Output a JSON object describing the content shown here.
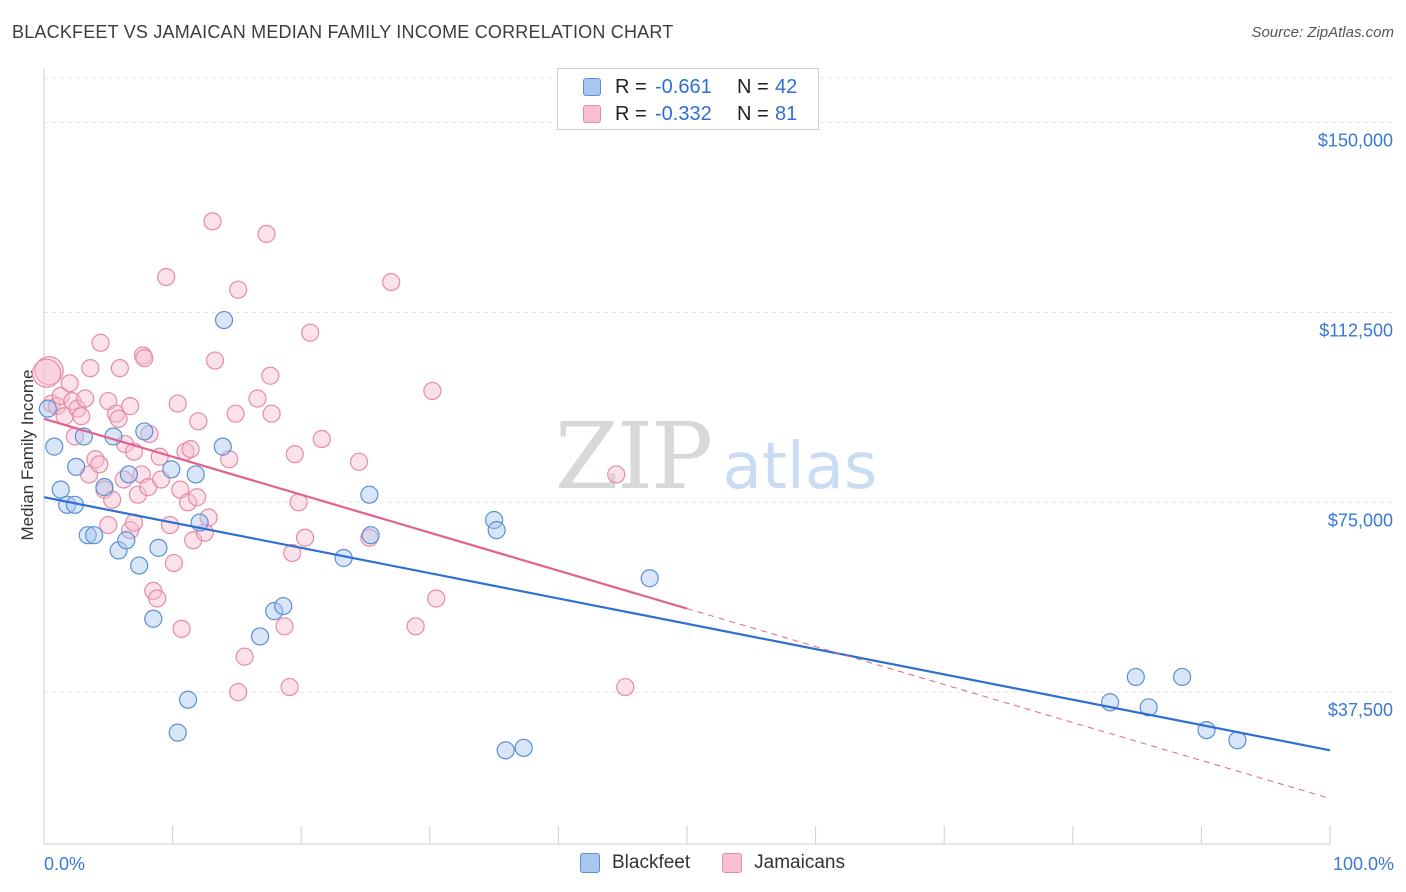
{
  "header": {
    "title": "BLACKFEET VS JAMAICAN MEDIAN FAMILY INCOME CORRELATION CHART",
    "source": "Source: ZipAtlas.com"
  },
  "watermark": {
    "zip": "ZIP",
    "atlas": "atlas"
  },
  "legend_top": {
    "rows": [
      {
        "r_label": "R =",
        "r_value": "-0.661",
        "n_label": "N =",
        "n_value": "42",
        "color": "#a9c8f0",
        "border": "#5b8fd6"
      },
      {
        "r_label": "R =",
        "r_value": "-0.332",
        "n_label": "N =",
        "n_value": "81",
        "color": "#f7bfd0",
        "border": "#e68aa6"
      }
    ]
  },
  "legend_bottom": {
    "items": [
      {
        "label": "Blackfeet",
        "color": "#a9c8f0",
        "border": "#5b8fd6"
      },
      {
        "label": "Jamaicans",
        "color": "#f7bfd0",
        "border": "#e68aa6"
      }
    ]
  },
  "chart_data": {
    "type": "scatter",
    "title": "BLACKFEET VS JAMAICAN MEDIAN FAMILY INCOME CORRELATION CHART",
    "xlabel": "",
    "ylabel": "Median Family Income",
    "xlim": [
      0,
      100
    ],
    "ylim": [
      7500,
      160000
    ],
    "x_tick_labels": [
      "0.0%",
      "100.0%"
    ],
    "y_ticks": [
      37500,
      75000,
      112500,
      150000
    ],
    "y_tick_labels": [
      "$37,500",
      "$75,000",
      "$112,500",
      "$150,000"
    ],
    "grid": true,
    "colors": {
      "blackfeet": "#5b8fd6",
      "blackfeet_fill": "#a9c8f0",
      "jamaicans": "#e68aa6",
      "jamaicans_fill": "#f7bfd0",
      "blackfeet_line": "#2f6fd0",
      "jamaicans_line": "#e0628f",
      "tick_text": "#3a78d4"
    },
    "series": [
      {
        "name": "Blackfeet",
        "trend": {
          "x0": 0,
          "y0": 76000,
          "x1": 100,
          "y1": 26000
        },
        "points": [
          [
            0.3,
            93500
          ],
          [
            0.8,
            86000
          ],
          [
            1.3,
            77500
          ],
          [
            1.8,
            74500
          ],
          [
            2.4,
            74500
          ],
          [
            2.5,
            82000
          ],
          [
            3.1,
            88000
          ],
          [
            3.4,
            68500
          ],
          [
            3.9,
            68500
          ],
          [
            4.7,
            78000
          ],
          [
            5.4,
            88000
          ],
          [
            5.8,
            65500
          ],
          [
            6.4,
            67500
          ],
          [
            6.6,
            80500
          ],
          [
            7.4,
            62500
          ],
          [
            7.8,
            89000
          ],
          [
            8.5,
            52000
          ],
          [
            8.9,
            66000
          ],
          [
            9.9,
            81500
          ],
          [
            10.4,
            29500
          ],
          [
            11.2,
            36000
          ],
          [
            11.8,
            80500
          ],
          [
            12.1,
            71000
          ],
          [
            13.9,
            86000
          ],
          [
            14.0,
            111000
          ],
          [
            16.8,
            48500
          ],
          [
            17.9,
            53500
          ],
          [
            18.6,
            54500
          ],
          [
            23.3,
            64000
          ],
          [
            25.3,
            76500
          ],
          [
            25.4,
            68500
          ],
          [
            35.0,
            71500
          ],
          [
            35.2,
            69500
          ],
          [
            35.9,
            26000
          ],
          [
            37.3,
            26500
          ],
          [
            47.1,
            60000
          ],
          [
            82.9,
            35500
          ],
          [
            84.9,
            40500
          ],
          [
            85.9,
            34500
          ],
          [
            88.5,
            40500
          ],
          [
            90.4,
            30000
          ],
          [
            92.8,
            28000
          ]
        ]
      },
      {
        "name": "Jamaicans",
        "trend": {
          "x0": 0,
          "y0": 91500,
          "x1": 50,
          "y1": 54000,
          "dash_to_x": 100,
          "dash_to_y": 16500
        },
        "points": [
          [
            0.4,
            101000
          ],
          [
            0.6,
            94500
          ],
          [
            1.0,
            94000
          ],
          [
            1.3,
            96000
          ],
          [
            1.6,
            92000
          ],
          [
            2.0,
            98500
          ],
          [
            2.2,
            95000
          ],
          [
            2.4,
            88000
          ],
          [
            2.6,
            93500
          ],
          [
            2.9,
            92000
          ],
          [
            3.2,
            95500
          ],
          [
            3.5,
            80500
          ],
          [
            3.6,
            101500
          ],
          [
            4.0,
            83500
          ],
          [
            4.3,
            82500
          ],
          [
            4.4,
            106500
          ],
          [
            4.7,
            77500
          ],
          [
            5.0,
            70500
          ],
          [
            5.0,
            95000
          ],
          [
            5.3,
            75500
          ],
          [
            5.6,
            92500
          ],
          [
            5.8,
            91500
          ],
          [
            5.9,
            101500
          ],
          [
            6.2,
            79500
          ],
          [
            6.3,
            86500
          ],
          [
            6.7,
            69500
          ],
          [
            6.7,
            94000
          ],
          [
            7.0,
            71000
          ],
          [
            7.0,
            85000
          ],
          [
            7.3,
            76500
          ],
          [
            7.6,
            80500
          ],
          [
            7.7,
            104000
          ],
          [
            7.8,
            103500
          ],
          [
            8.1,
            78000
          ],
          [
            8.2,
            88500
          ],
          [
            8.5,
            57500
          ],
          [
            8.8,
            56000
          ],
          [
            9.0,
            84000
          ],
          [
            9.1,
            79500
          ],
          [
            9.5,
            119500
          ],
          [
            9.8,
            70500
          ],
          [
            10.1,
            63000
          ],
          [
            10.4,
            94500
          ],
          [
            10.6,
            77500
          ],
          [
            10.7,
            50000
          ],
          [
            11.0,
            85000
          ],
          [
            11.2,
            75000
          ],
          [
            11.4,
            85500
          ],
          [
            11.6,
            67500
          ],
          [
            11.9,
            76000
          ],
          [
            12.0,
            91000
          ],
          [
            12.5,
            69000
          ],
          [
            12.8,
            72000
          ],
          [
            13.1,
            130500
          ],
          [
            13.3,
            103000
          ],
          [
            14.4,
            83500
          ],
          [
            14.9,
            92500
          ],
          [
            15.1,
            117000
          ],
          [
            15.1,
            37500
          ],
          [
            15.6,
            44500
          ],
          [
            16.6,
            95500
          ],
          [
            17.3,
            128000
          ],
          [
            17.6,
            100000
          ],
          [
            17.7,
            92500
          ],
          [
            18.7,
            50500
          ],
          [
            19.1,
            38500
          ],
          [
            19.3,
            65000
          ],
          [
            19.5,
            84500
          ],
          [
            19.8,
            75000
          ],
          [
            20.3,
            68000
          ],
          [
            20.7,
            108500
          ],
          [
            21.6,
            87500
          ],
          [
            24.5,
            83000
          ],
          [
            25.3,
            68000
          ],
          [
            27.0,
            118500
          ],
          [
            28.9,
            50500
          ],
          [
            30.2,
            97000
          ],
          [
            30.5,
            56000
          ],
          [
            44.5,
            80500
          ],
          [
            45.2,
            38500
          ],
          [
            0.2,
            100500
          ]
        ]
      }
    ]
  }
}
